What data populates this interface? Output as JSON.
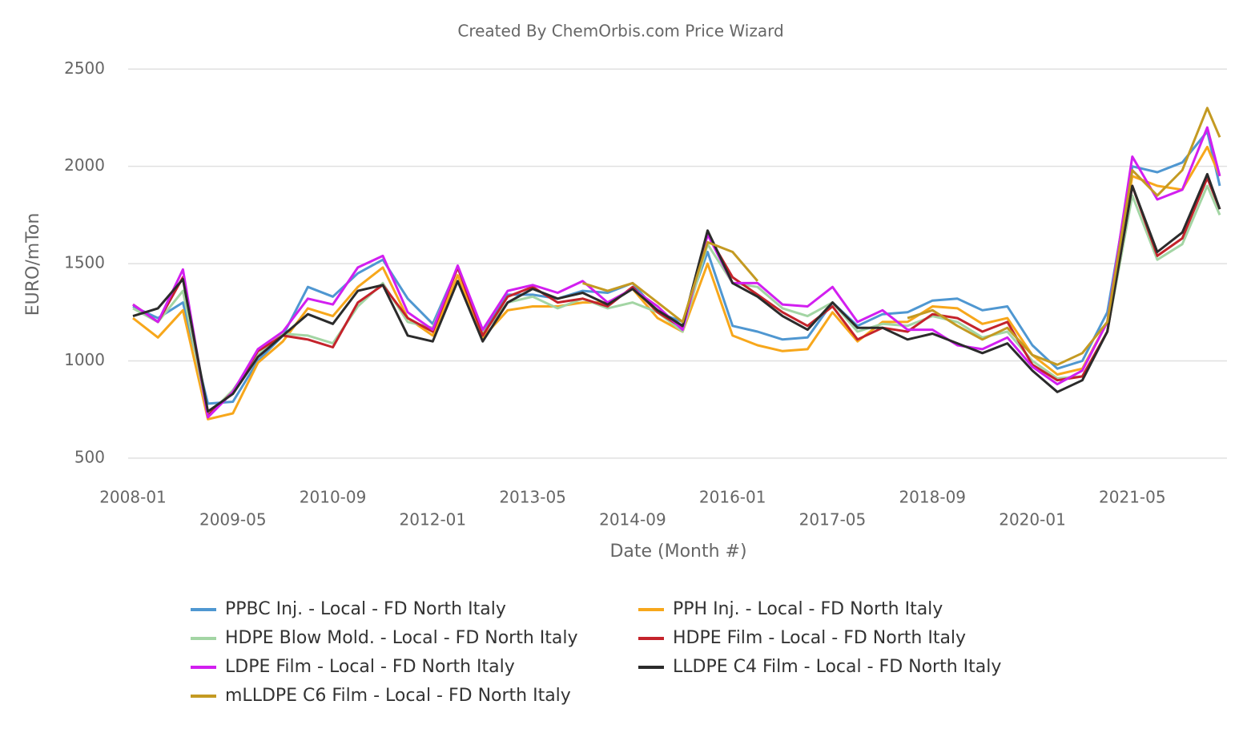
{
  "chart_data": {
    "type": "line",
    "title": "Created By ChemOrbis.com Price Wizard",
    "x_label": "Date (Month #)",
    "y_label": "EURO/mTon",
    "x": [
      "2008-01",
      "2008-05",
      "2008-09",
      "2009-01",
      "2009-05",
      "2009-09",
      "2010-01",
      "2010-05",
      "2010-09",
      "2011-01",
      "2011-05",
      "2011-09",
      "2012-01",
      "2012-05",
      "2012-09",
      "2013-01",
      "2013-05",
      "2013-09",
      "2014-01",
      "2014-05",
      "2014-09",
      "2015-01",
      "2015-05",
      "2015-09",
      "2016-01",
      "2016-05",
      "2016-09",
      "2017-01",
      "2017-05",
      "2017-09",
      "2018-01",
      "2018-05",
      "2018-09",
      "2019-01",
      "2019-05",
      "2019-09",
      "2020-01",
      "2020-05",
      "2020-09",
      "2021-01",
      "2021-05",
      "2021-09",
      "2022-01",
      "2022-05",
      "2022-07"
    ],
    "xlim": [
      "2008-01",
      "2022-07"
    ],
    "xticks": [
      "2008-01",
      "2009-05",
      "2010-09",
      "2012-01",
      "2013-05",
      "2014-09",
      "2016-01",
      "2017-05",
      "2018-09",
      "2020-01",
      "2021-05"
    ],
    "ylim": [
      380,
      2600
    ],
    "yticks": [
      500,
      1000,
      1500,
      2000,
      2500
    ],
    "grid": true,
    "legend": "bottom",
    "series": [
      {
        "name": "PPBC Inj. - Local - FD North Italy",
        "color": "#4f97d1",
        "values": [
          1280,
          1220,
          1300,
          780,
          790,
          1000,
          1130,
          1380,
          1330,
          1450,
          1520,
          1320,
          1190,
          1480,
          1150,
          1340,
          1340,
          1320,
          1360,
          1350,
          1400,
          1250,
          1200,
          1560,
          1180,
          1150,
          1110,
          1120,
          1300,
          1180,
          1240,
          1250,
          1310,
          1320,
          1260,
          1280,
          1080,
          960,
          1000,
          1250,
          2000,
          1970,
          2020,
          2180,
          1900
        ]
      },
      {
        "name": "PPH Inj. - Local - FD North Italy",
        "color": "#f7a71b",
        "values": [
          1220,
          1120,
          1260,
          700,
          730,
          990,
          1100,
          1270,
          1230,
          1380,
          1480,
          1220,
          1130,
          1440,
          1120,
          1260,
          1280,
          1280,
          1300,
          1300,
          1370,
          1220,
          1150,
          1500,
          1130,
          1080,
          1050,
          1060,
          1250,
          1100,
          1200,
          1200,
          1280,
          1270,
          1190,
          1220,
          1030,
          930,
          960,
          1200,
          1950,
          1900,
          1880,
          2100,
          1950
        ]
      },
      {
        "name": "HDPE Blow Mold. - Local - FD North Italy",
        "color": "#a3d5a4",
        "values": [
          1270,
          1200,
          1360,
          720,
          850,
          1030,
          1140,
          1130,
          1090,
          1280,
          1400,
          1200,
          1170,
          1480,
          1140,
          1300,
          1330,
          1270,
          1320,
          1270,
          1300,
          1250,
          1150,
          1600,
          1400,
          1380,
          1270,
          1230,
          1300,
          1150,
          1190,
          1180,
          1230,
          1200,
          1120,
          1150,
          1000,
          910,
          920,
          1150,
          1850,
          1520,
          1600,
          1900,
          1750
        ]
      },
      {
        "name": "HDPE Film - Local - FD North Italy",
        "color": "#c4232b",
        "values": [
          1290,
          1200,
          1430,
          720,
          840,
          1050,
          1130,
          1110,
          1070,
          1300,
          1390,
          1220,
          1150,
          1480,
          1130,
          1330,
          1380,
          1300,
          1320,
          1280,
          1380,
          1250,
          1170,
          1650,
          1430,
          1340,
          1250,
          1180,
          1280,
          1110,
          1170,
          1150,
          1240,
          1220,
          1150,
          1200,
          980,
          900,
          920,
          1150,
          1900,
          1540,
          1630,
          1940,
          1780
        ]
      },
      {
        "name": "LDPE Film - Local - FD North Italy",
        "color": "#d21ff0",
        "values": [
          1290,
          1200,
          1470,
          710,
          840,
          1060,
          1150,
          1320,
          1290,
          1480,
          1540,
          1250,
          1160,
          1490,
          1160,
          1360,
          1390,
          1350,
          1410,
          1300,
          1370,
          1280,
          1160,
          1650,
          1400,
          1400,
          1290,
          1280,
          1380,
          1200,
          1260,
          1160,
          1160,
          1080,
          1060,
          1120,
          970,
          880,
          950,
          1200,
          2050,
          1830,
          1880,
          2200,
          1950
        ]
      },
      {
        "name": "LLDPE C4 Film - Local - FD North Italy",
        "color": "#2b2b2b",
        "values": [
          1230,
          1270,
          1420,
          740,
          830,
          1020,
          1130,
          1240,
          1190,
          1360,
          1390,
          1130,
          1100,
          1410,
          1100,
          1300,
          1370,
          1320,
          1350,
          1290,
          1370,
          1260,
          1180,
          1670,
          1400,
          1330,
          1230,
          1160,
          1300,
          1170,
          1170,
          1110,
          1140,
          1090,
          1040,
          1090,
          950,
          840,
          900,
          1150,
          1900,
          1560,
          1660,
          1960,
          1780
        ]
      },
      {
        "name": "mLLDPE C6 Film - Local - FD North Italy",
        "color": "#c49a22",
        "values": [
          null,
          null,
          null,
          null,
          null,
          null,
          null,
          null,
          null,
          null,
          null,
          null,
          null,
          null,
          null,
          null,
          null,
          null,
          1400,
          1360,
          1400,
          1300,
          1200,
          1610,
          1560,
          1410,
          null,
          null,
          null,
          null,
          null,
          1220,
          1260,
          1180,
          1110,
          1170,
          1030,
          980,
          1040,
          1200,
          1980,
          1850,
          1980,
          2300,
          2150
        ]
      }
    ]
  }
}
